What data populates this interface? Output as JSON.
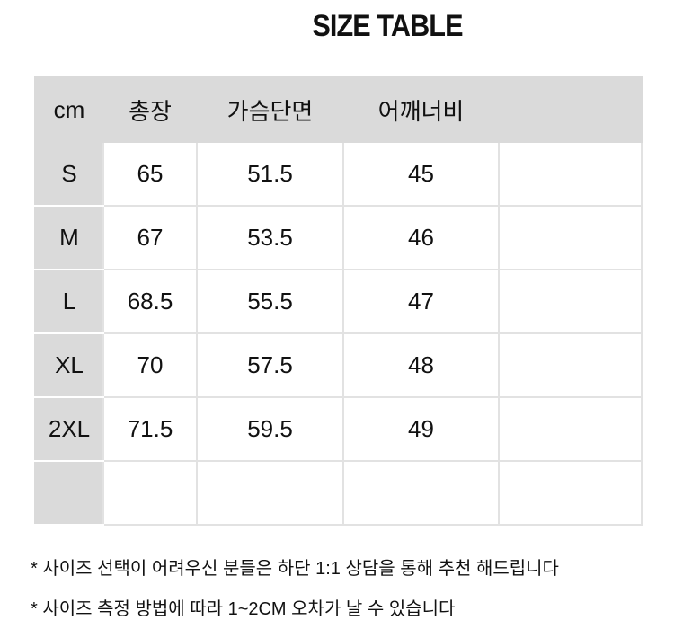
{
  "header": {
    "title": "SIZE TABLE"
  },
  "table": {
    "columns": [
      "cm",
      "총장",
      "가슴단면",
      "어깨너비"
    ],
    "rows": [
      [
        "S",
        "65",
        "51.5",
        "45"
      ],
      [
        "M",
        "67",
        "53.5",
        "46"
      ],
      [
        "L",
        "68.5",
        "55.5",
        "47"
      ],
      [
        "XL",
        "70",
        "57.5",
        "48"
      ],
      [
        "2XL",
        "71.5",
        "59.5",
        "49"
      ]
    ]
  },
  "notes": [
    "* 사이즈 선택이 어려우신 분들은 하단 1:1 상담을 통해 추천 해드립니다",
    "* 사이즈 측정 방법에 따라 1~2CM 오차가 날 수 있습니다"
  ]
}
